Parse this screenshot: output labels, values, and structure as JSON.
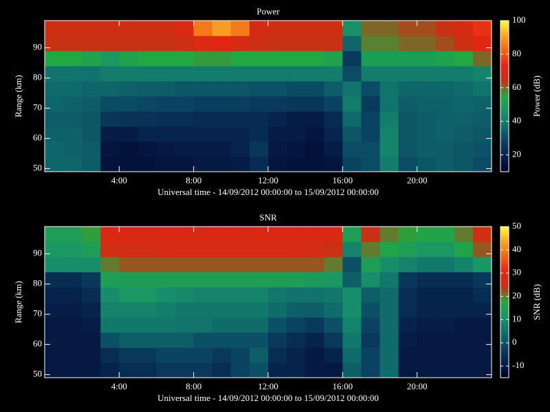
{
  "chart_data": [
    {
      "type": "heatmap",
      "title": "Power",
      "xlabel": "Universal time - 14/09/2012 00:00:00 to 15/09/2012 00:00:00",
      "ylabel": "Range (km)",
      "colorbar_label": "Power (dB)",
      "xlim": [
        0,
        24
      ],
      "xticks": [
        {
          "value": 4,
          "label": "4:00"
        },
        {
          "value": 8,
          "label": "8:00"
        },
        {
          "value": 12,
          "label": "12:00"
        },
        {
          "value": 16,
          "label": "16:00"
        },
        {
          "value": 20,
          "label": "20:00"
        }
      ],
      "ylim": [
        49,
        99
      ],
      "yticks": [
        50,
        60,
        70,
        80,
        90
      ],
      "clim": [
        10,
        100
      ],
      "cticks": [
        20,
        40,
        60,
        80,
        100
      ],
      "colormap": [
        "#000028",
        "#06204a",
        "#0a4262",
        "#10706c",
        "#189468",
        "#22a840",
        "#c83212",
        "#e42414",
        "#f06414",
        "#f8a424",
        "#ffff30"
      ],
      "x_bins": [
        0,
        1,
        2,
        3,
        4,
        5,
        6,
        7,
        8,
        9,
        10,
        11,
        12,
        13,
        14,
        15,
        16,
        17,
        18,
        19,
        20,
        21,
        22,
        23,
        24
      ],
      "y_bins": [
        49,
        54,
        59,
        64,
        69,
        74,
        79,
        84,
        89,
        94,
        99
      ],
      "z": [
        [
          35,
          35,
          33,
          15,
          15,
          15,
          16,
          16,
          17,
          17,
          18,
          22,
          16,
          15,
          15,
          16,
          28,
          30,
          40,
          30,
          32,
          33,
          32,
          30
        ],
        [
          35,
          34,
          33,
          16,
          15,
          16,
          17,
          18,
          18,
          18,
          20,
          25,
          17,
          16,
          15,
          18,
          30,
          30,
          42,
          32,
          33,
          33,
          32,
          31
        ],
        [
          34,
          34,
          32,
          18,
          18,
          20,
          20,
          20,
          20,
          20,
          20,
          22,
          18,
          18,
          16,
          20,
          32,
          28,
          42,
          32,
          33,
          34,
          33,
          32
        ],
        [
          33,
          33,
          32,
          25,
          24,
          24,
          23,
          23,
          22,
          22,
          22,
          22,
          20,
          18,
          18,
          22,
          36,
          28,
          40,
          32,
          33,
          34,
          34,
          33
        ],
        [
          35,
          34,
          33,
          30,
          30,
          29,
          28,
          28,
          27,
          27,
          27,
          26,
          26,
          25,
          25,
          28,
          40,
          26,
          38,
          33,
          34,
          34,
          35,
          34
        ],
        [
          36,
          36,
          35,
          35,
          34,
          33,
          33,
          32,
          32,
          32,
          32,
          31,
          31,
          30,
          30,
          33,
          38,
          30,
          38,
          35,
          35,
          35,
          36,
          38
        ],
        [
          38,
          38,
          38,
          40,
          40,
          40,
          40,
          40,
          40,
          40,
          40,
          40,
          40,
          40,
          40,
          40,
          30,
          40,
          40,
          40,
          40,
          40,
          40,
          42
        ],
        [
          55,
          55,
          52,
          48,
          52,
          55,
          55,
          55,
          56,
          56,
          55,
          55,
          55,
          55,
          55,
          52,
          26,
          50,
          50,
          50,
          50,
          52,
          55,
          60
        ],
        [
          64,
          64,
          64,
          64,
          64,
          64,
          64,
          66,
          70,
          72,
          68,
          66,
          64,
          64,
          64,
          64,
          35,
          58,
          58,
          60,
          60,
          62,
          65,
          72
        ],
        [
          66,
          66,
          66,
          66,
          66,
          66,
          66,
          70,
          85,
          90,
          85,
          68,
          66,
          66,
          66,
          66,
          45,
          60,
          60,
          62,
          62,
          64,
          68,
          75
        ]
      ]
    },
    {
      "type": "heatmap",
      "title": "SNR",
      "xlabel": "Universal time - 14/09/2012 00:00:00 to 15/09/2012 00:00:00",
      "ylabel": "Range (km)",
      "colorbar_label": "SNR (dB)",
      "xlim": [
        0,
        24
      ],
      "xticks": [
        {
          "value": 4,
          "label": "4:00"
        },
        {
          "value": 8,
          "label": "8:00"
        },
        {
          "value": 12,
          "label": "12:00"
        },
        {
          "value": 16,
          "label": "16:00"
        },
        {
          "value": 20,
          "label": "20:00"
        }
      ],
      "ylim": [
        49,
        99
      ],
      "yticks": [
        50,
        60,
        70,
        80,
        90
      ],
      "clim": [
        -15,
        50
      ],
      "cticks": [
        -10,
        0,
        10,
        20,
        30,
        40,
        50
      ],
      "colormap": [
        "#000028",
        "#06204a",
        "#0a4262",
        "#10706c",
        "#189468",
        "#22a840",
        "#c83212",
        "#e42414",
        "#f06414",
        "#f8a424",
        "#ffff30"
      ],
      "x_bins": [
        0,
        1,
        2,
        3,
        4,
        5,
        6,
        7,
        8,
        9,
        10,
        11,
        12,
        13,
        14,
        15,
        16,
        17,
        18,
        19,
        20,
        21,
        22,
        23,
        24
      ],
      "y_bins": [
        49,
        54,
        59,
        64,
        69,
        74,
        79,
        84,
        89,
        94,
        99
      ],
      "z": [
        [
          -10,
          -10,
          -10,
          -8,
          -6,
          -6,
          -4,
          -4,
          -4,
          -6,
          -2,
          0,
          -8,
          -8,
          -10,
          -10,
          2,
          -2,
          4,
          -10,
          -10,
          -10,
          -10,
          -10
        ],
        [
          -10,
          -10,
          -10,
          -6,
          -4,
          -4,
          -2,
          -2,
          -2,
          -4,
          -2,
          2,
          -6,
          -8,
          -10,
          -8,
          4,
          -2,
          4,
          -10,
          -10,
          -10,
          -10,
          -10
        ],
        [
          -10,
          -10,
          -10,
          0,
          2,
          2,
          2,
          2,
          0,
          0,
          0,
          0,
          -4,
          -6,
          -8,
          -4,
          6,
          -4,
          4,
          -9,
          -10,
          -10,
          -10,
          -10
        ],
        [
          -10,
          -10,
          -9,
          6,
          6,
          6,
          6,
          5,
          5,
          4,
          4,
          4,
          0,
          -2,
          -4,
          0,
          8,
          -2,
          4,
          -8,
          -9,
          -9,
          -10,
          -10
        ],
        [
          -9,
          -9,
          -8,
          8,
          8,
          8,
          7,
          6,
          6,
          6,
          6,
          6,
          4,
          2,
          2,
          4,
          10,
          0,
          4,
          -6,
          -8,
          -8,
          -8,
          -8
        ],
        [
          -8,
          -8,
          -6,
          10,
          12,
          12,
          10,
          9,
          8,
          8,
          8,
          8,
          6,
          5,
          5,
          6,
          10,
          2,
          4,
          -6,
          -8,
          -8,
          -8,
          -6
        ],
        [
          -6,
          -6,
          -4,
          14,
          14,
          14,
          14,
          14,
          14,
          14,
          14,
          14,
          14,
          14,
          13,
          12,
          2,
          10,
          6,
          -4,
          -6,
          -6,
          -6,
          -4
        ],
        [
          10,
          10,
          10,
          20,
          22,
          22,
          22,
          22,
          22,
          22,
          22,
          22,
          22,
          22,
          22,
          20,
          0,
          14,
          10,
          8,
          6,
          6,
          8,
          12
        ],
        [
          12,
          12,
          14,
          26,
          26,
          26,
          27,
          27,
          27,
          27,
          27,
          27,
          27,
          27,
          26,
          25,
          8,
          20,
          16,
          14,
          12,
          12,
          16,
          22
        ],
        [
          14,
          14,
          18,
          28,
          28,
          28,
          28,
          28,
          28,
          28,
          28,
          28,
          28,
          28,
          28,
          28,
          14,
          24,
          20,
          18,
          16,
          16,
          20,
          26
        ]
      ]
    }
  ]
}
